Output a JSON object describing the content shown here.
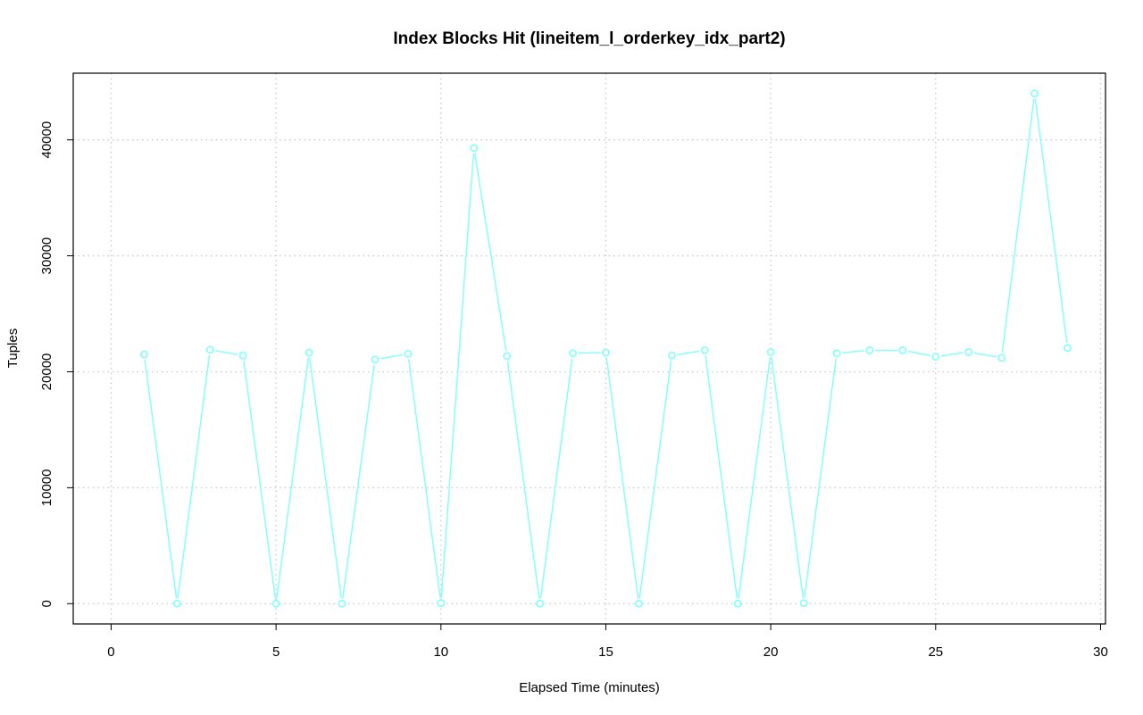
{
  "chart_data": {
    "type": "line",
    "title": "Index Blocks Hit (lineitem_l_orderkey_idx_part2)",
    "xlabel": "Elapsed Time (minutes)",
    "ylabel": "Tuples",
    "xlim": [
      -1.15,
      30.15
    ],
    "ylim": [
      -1750,
      45750
    ],
    "x_ticks": [
      0,
      5,
      10,
      15,
      20,
      25,
      30
    ],
    "y_ticks": [
      0,
      10000,
      20000,
      30000,
      40000
    ],
    "grid": true,
    "color": "#7fffff",
    "series": [
      {
        "x": [
          1,
          2,
          3,
          4,
          5,
          6,
          7,
          8,
          9,
          10,
          11,
          12,
          13,
          14,
          15,
          16,
          17,
          18,
          19,
          20,
          21,
          22,
          23,
          24,
          25,
          26,
          27,
          28,
          29
        ],
        "values": [
          21500,
          0,
          21900,
          21400,
          0,
          21650,
          0,
          21050,
          21550,
          50,
          39300,
          21350,
          0,
          21600,
          21650,
          0,
          21400,
          21850,
          0,
          21700,
          50,
          21600,
          21850,
          21850,
          21300,
          21700,
          21200,
          44000,
          22050
        ]
      }
    ]
  }
}
